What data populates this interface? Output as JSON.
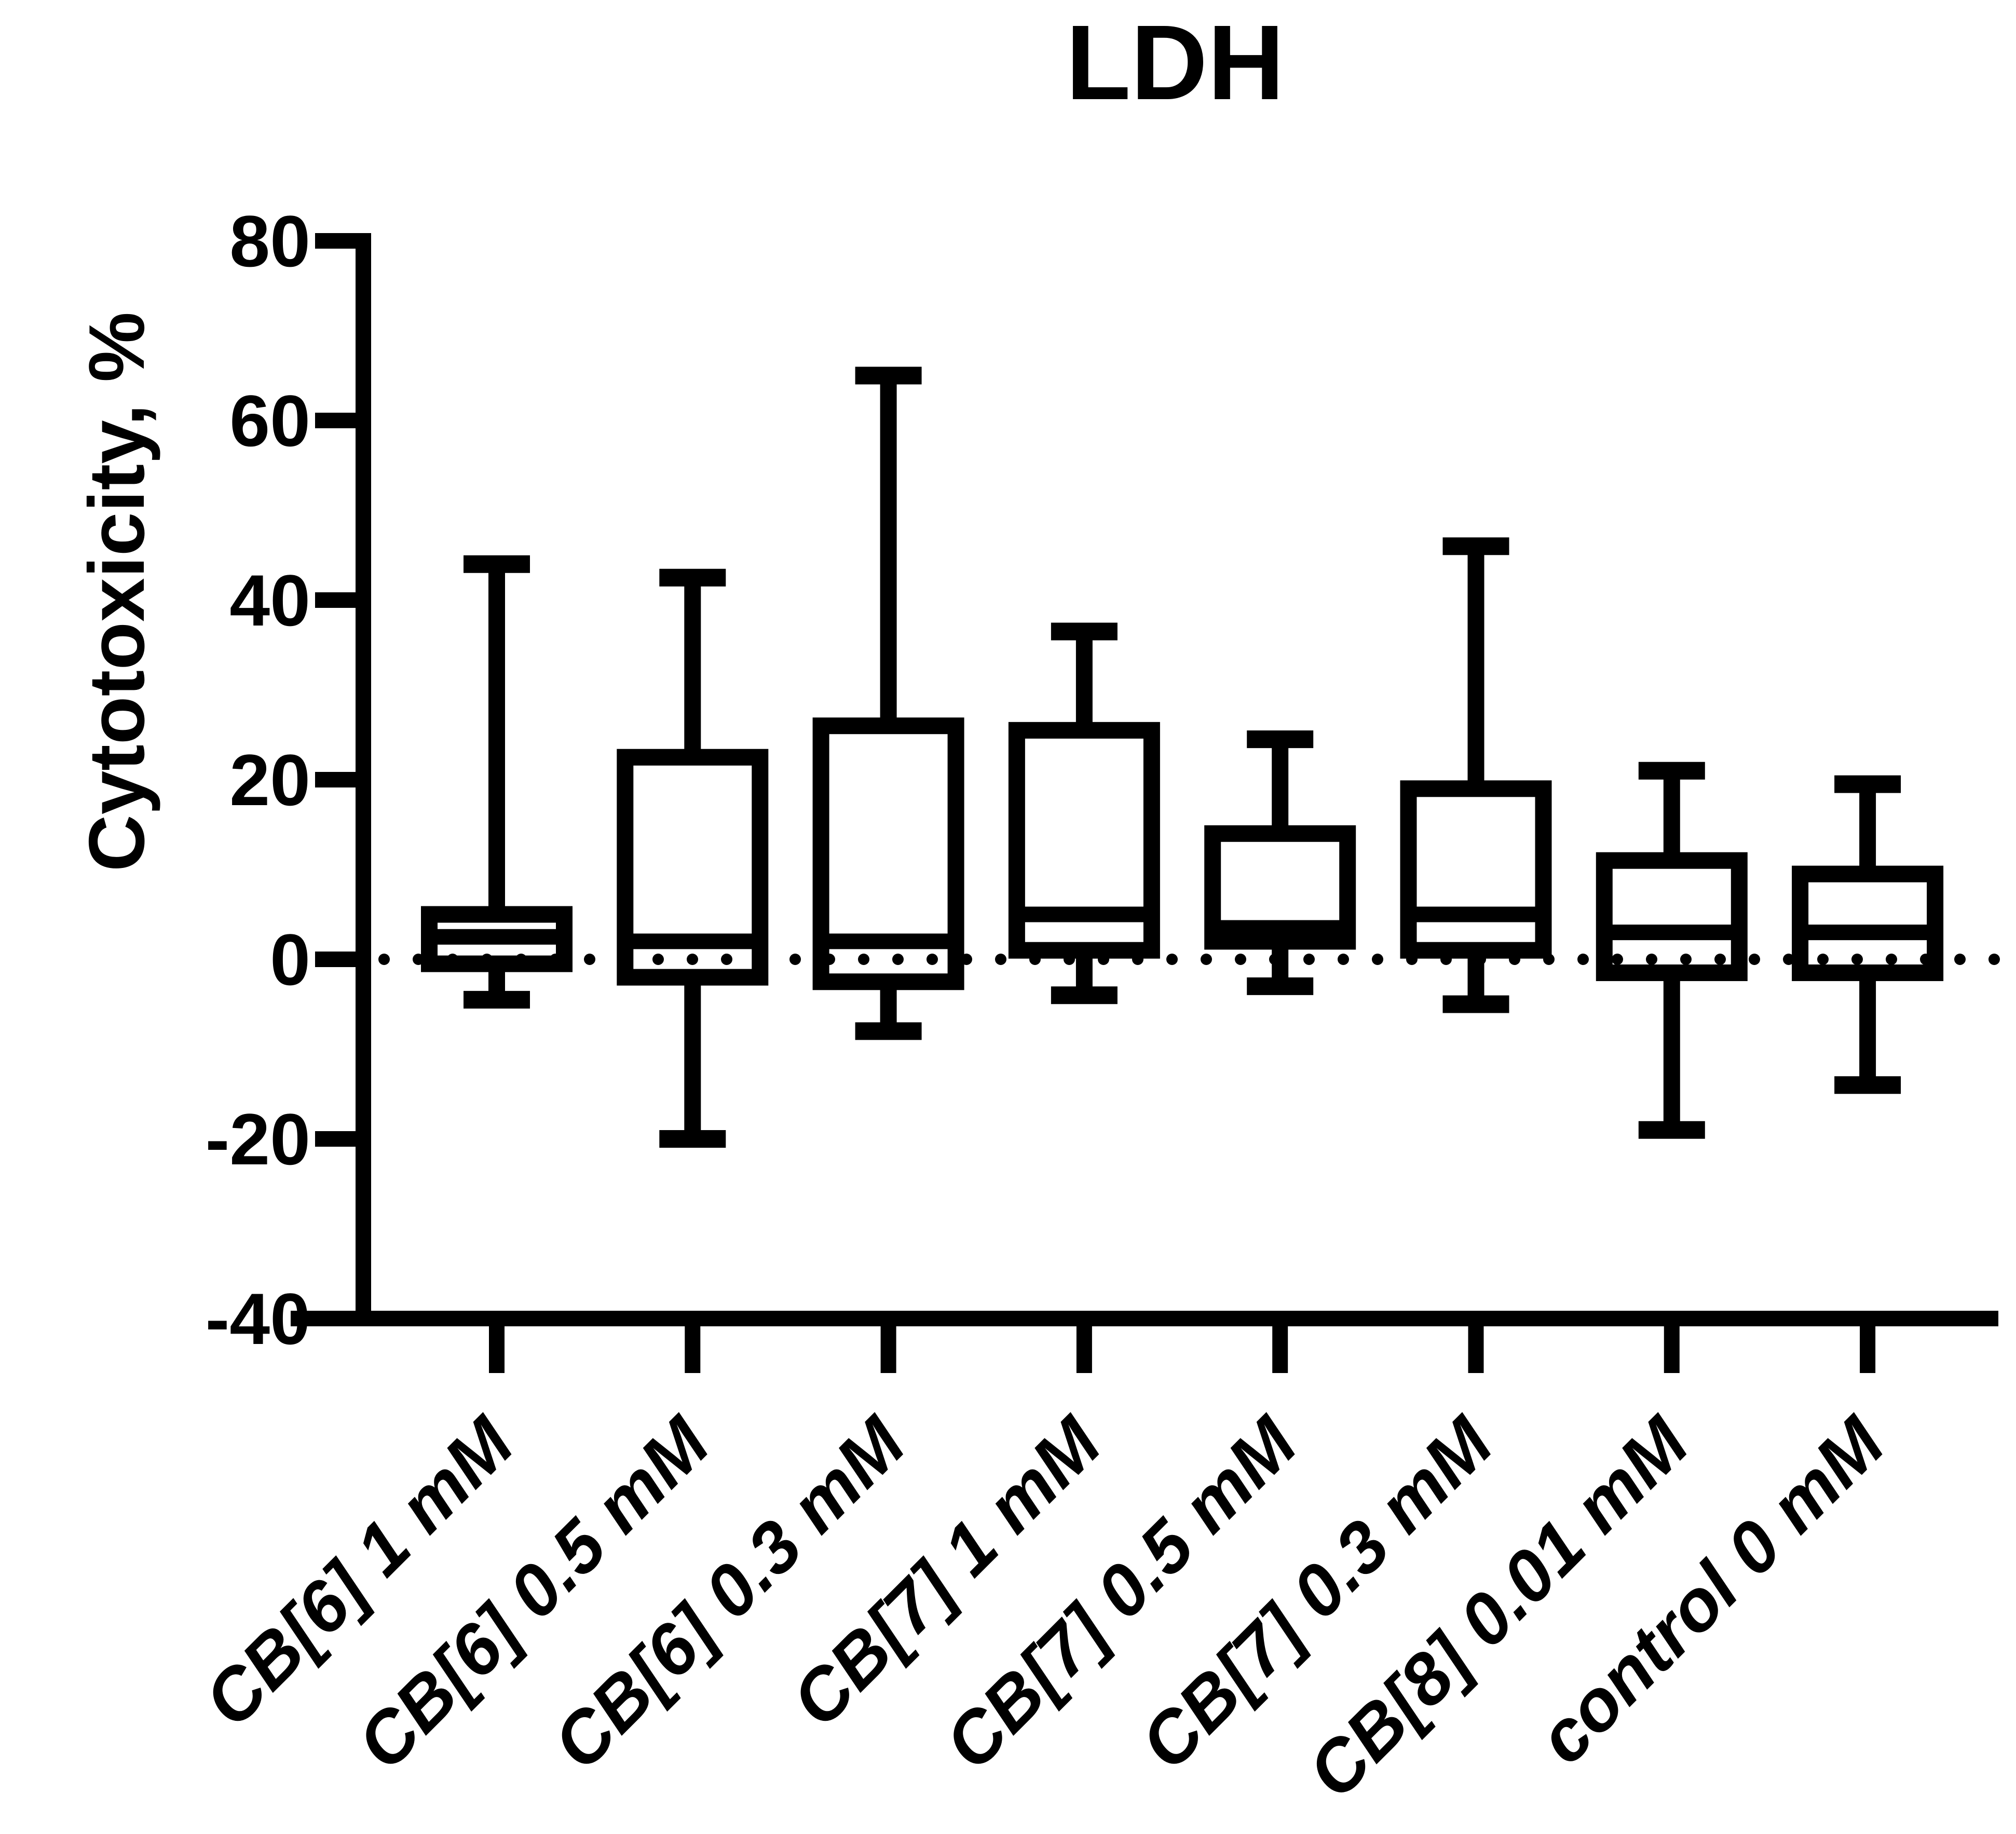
{
  "chart_data": {
    "type": "box",
    "title": "LDH",
    "ylabel": "Cytotoxicity, %",
    "xlabel": "",
    "ylim": [
      -40,
      80
    ],
    "ytick_step": 20,
    "yticks": [
      80,
      60,
      40,
      20,
      0,
      -20,
      -40
    ],
    "grid": false,
    "legend": null,
    "whisker_style": "min-max",
    "zero_reference_line": {
      "y": 0,
      "style": "dotted"
    },
    "categories": [
      "CB[6] 1 mM",
      "CB[6] 0.5 mM",
      "CB[6] 0.3 mM",
      "CB[7] 1 mM",
      "CB[7] 0.5 mM",
      "CB[7] 0.3 mM",
      "CB[8] 0.01 mM",
      "control 0 mM"
    ],
    "series": [
      {
        "label": "CB[6] 1 mM",
        "min": -4.5,
        "q1": -0.5,
        "median": 2.5,
        "q3": 5,
        "max": 44
      },
      {
        "label": "CB[6] 0.5 mM",
        "min": -20,
        "q1": -2,
        "median": 2,
        "q3": 22.5,
        "max": 42.5
      },
      {
        "label": "CB[6] 0.3 mM",
        "min": -8,
        "q1": -2.5,
        "median": 2,
        "q3": 26,
        "max": 65
      },
      {
        "label": "CB[7] 1 mM",
        "min": -4,
        "q1": 1,
        "median": 5,
        "q3": 25.5,
        "max": 36.5
      },
      {
        "label": "CB[7] 0.5 mM",
        "min": -3,
        "q1": 2,
        "median": 3.5,
        "q3": 14,
        "max": 24.5
      },
      {
        "label": "CB[7] 0.3 mM",
        "min": -5,
        "q1": 1,
        "median": 5,
        "q3": 19,
        "max": 46
      },
      {
        "label": "CB[8] 0.01 mM",
        "min": -19,
        "q1": -1.5,
        "median": 3,
        "q3": 11,
        "max": 21
      },
      {
        "label": "control 0 mM",
        "min": -14,
        "q1": -1.5,
        "median": 3,
        "q3": 9.5,
        "max": 19.5
      }
    ],
    "colors": {
      "box_stroke": "#000000",
      "box_fill": "#ffffff",
      "axis": "#000000",
      "text": "#000000",
      "background": "#ffffff"
    }
  }
}
